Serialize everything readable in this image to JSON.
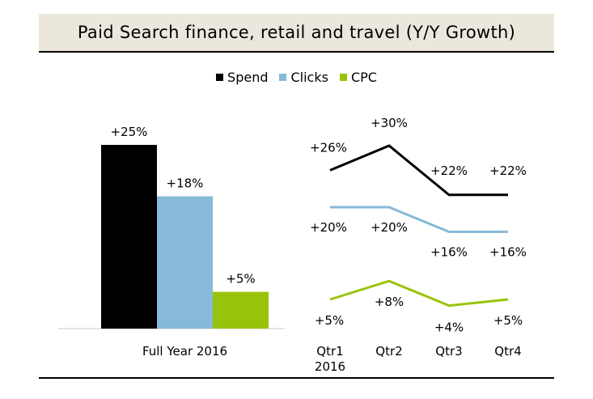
{
  "chart_data": [
    {
      "type": "bar",
      "title": "Paid Search finance, retail and travel (Y/Y Growth)",
      "categories": [
        "Full Year 2016"
      ],
      "series": [
        {
          "name": "Spend",
          "values": [
            25
          ],
          "label": "+25%",
          "color": "#000000"
        },
        {
          "name": "Clicks",
          "values": [
            18
          ],
          "label": "+18%",
          "color": "#87b9d8"
        },
        {
          "name": "CPC",
          "values": [
            5
          ],
          "label": "+5%",
          "color": "#99c30a"
        }
      ],
      "ylim": [
        0,
        25
      ],
      "legend": "top-center"
    },
    {
      "type": "line",
      "categories": [
        [
          "Qtr1",
          "2016"
        ],
        [
          "Qtr2"
        ],
        [
          "Qtr3"
        ],
        [
          "Qtr4"
        ]
      ],
      "series": [
        {
          "name": "Spend",
          "values": [
            26,
            30,
            22,
            22
          ],
          "labels": [
            "+26%",
            "+30%",
            "+22%",
            "+22%"
          ],
          "color": "#000000"
        },
        {
          "name": "Clicks",
          "values": [
            20,
            20,
            16,
            16
          ],
          "labels": [
            "+20%",
            "+20%",
            "+16%",
            "+16%"
          ],
          "color": "#87b9d8"
        },
        {
          "name": "CPC",
          "values": [
            5,
            8,
            4,
            5
          ],
          "labels": [
            "+5%",
            "+8%",
            "+4%",
            "+5%"
          ],
          "color": "#99c30a"
        }
      ]
    }
  ]
}
